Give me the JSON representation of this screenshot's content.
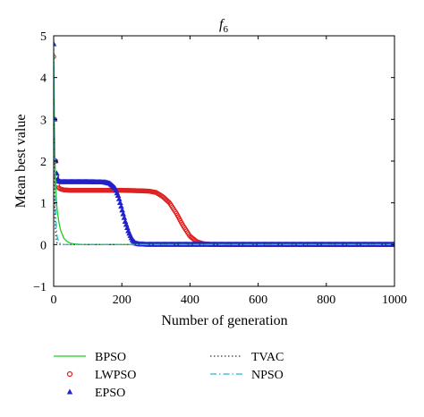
{
  "chart_data": {
    "type": "line",
    "title": "f6",
    "title_main": "f",
    "title_sub": "6",
    "xlabel": "Number of generation",
    "ylabel": "Mean best value",
    "xlim": [
      0,
      1000
    ],
    "ylim": [
      -1,
      5
    ],
    "xticks": [
      0,
      200,
      400,
      600,
      800,
      1000
    ],
    "yticks": [
      -1,
      0,
      1,
      2,
      3,
      4,
      5
    ],
    "xtick_labels": [
      "0",
      "200",
      "400",
      "600",
      "800",
      "1000"
    ],
    "ytick_labels": [
      "−1",
      "0",
      "1",
      "2",
      "3",
      "4",
      "5"
    ],
    "grid": false,
    "legend_placement": "below",
    "series": [
      {
        "name": "BPSO",
        "color": "#22cc22",
        "style": "solid-line",
        "x": [
          0,
          2,
          4,
          6,
          8,
          10,
          15,
          20,
          30,
          40,
          50,
          60,
          80,
          100,
          150,
          1000
        ],
        "y": [
          4.6,
          3.0,
          2.0,
          1.4,
          1.05,
          0.85,
          0.55,
          0.35,
          0.15,
          0.07,
          0.03,
          0.015,
          0.004,
          0.001,
          0,
          0
        ]
      },
      {
        "name": "LWPSO",
        "color": "#dd2222",
        "style": "circle-markers",
        "x": [
          0,
          3,
          6,
          10,
          15,
          20,
          30,
          50,
          100,
          150,
          200,
          250,
          280,
          300,
          320,
          340,
          360,
          380,
          400,
          420,
          440,
          460,
          500,
          1000
        ],
        "y": [
          4.5,
          3.0,
          2.0,
          1.5,
          1.36,
          1.33,
          1.31,
          1.3,
          1.3,
          1.3,
          1.3,
          1.29,
          1.28,
          1.25,
          1.15,
          1.0,
          0.75,
          0.45,
          0.2,
          0.07,
          0.02,
          0.005,
          0,
          0
        ]
      },
      {
        "name": "EPSO",
        "color": "#2222cc",
        "style": "triangle-markers",
        "x": [
          0,
          3,
          6,
          10,
          15,
          20,
          30,
          50,
          100,
          150,
          165,
          180,
          190,
          200,
          210,
          220,
          230,
          240,
          250,
          270,
          300,
          1000
        ],
        "y": [
          4.8,
          3.0,
          2.0,
          1.6,
          1.52,
          1.5,
          1.5,
          1.5,
          1.5,
          1.49,
          1.46,
          1.35,
          1.15,
          0.85,
          0.55,
          0.3,
          0.12,
          0.03,
          0.01,
          0,
          0,
          0
        ]
      },
      {
        "name": "TVAC",
        "color": "#333333",
        "style": "dotted-line",
        "x": [
          0,
          2,
          4,
          6,
          8,
          10,
          15,
          20,
          40,
          100,
          1000
        ],
        "y": [
          4.0,
          1.6,
          0.6,
          0.25,
          0.1,
          0.04,
          0.01,
          0.004,
          0.001,
          0,
          0
        ]
      },
      {
        "name": "NPSO",
        "color": "#22bbcc",
        "style": "dashdot-line",
        "x": [
          0,
          2,
          4,
          6,
          8,
          10,
          15,
          20,
          30,
          60,
          1000
        ],
        "y": [
          4.9,
          3.0,
          1.6,
          0.8,
          0.4,
          0.2,
          0.06,
          0.02,
          0.005,
          0,
          0
        ]
      }
    ]
  }
}
